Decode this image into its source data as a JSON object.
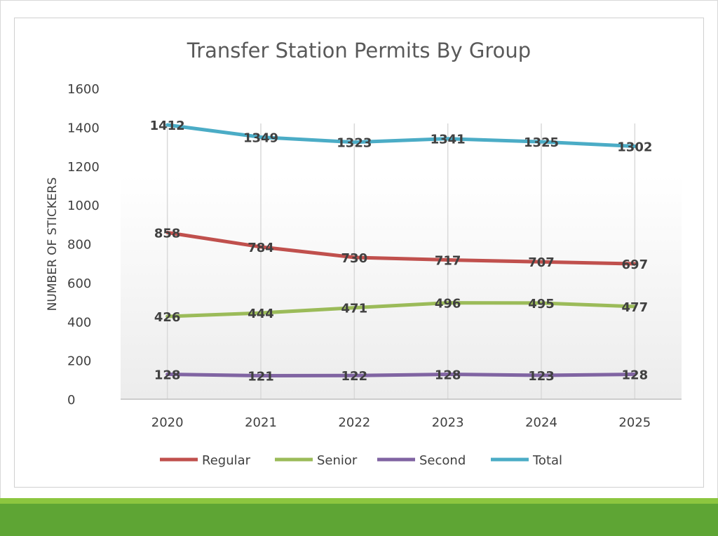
{
  "chart_data": {
    "type": "line",
    "title": "Transfer Station Permits By Group",
    "xlabel": "",
    "ylabel": "NUMBER OF STICKERS",
    "categories": [
      "2020",
      "2021",
      "2022",
      "2023",
      "2024",
      "2025"
    ],
    "ylim": [
      0,
      1600
    ],
    "yticks": [
      0,
      200,
      400,
      600,
      800,
      1000,
      1200,
      1400,
      1600
    ],
    "grid": "vertical",
    "legend": "bottom",
    "series": [
      {
        "name": "Regular",
        "color": "#c0504d",
        "values": [
          858,
          784,
          730,
          717,
          707,
          697
        ]
      },
      {
        "name": "Senior",
        "color": "#9bbb59",
        "values": [
          426,
          444,
          471,
          496,
          495,
          477
        ]
      },
      {
        "name": "Second",
        "color": "#8064a2",
        "values": [
          128,
          121,
          122,
          128,
          123,
          128
        ]
      },
      {
        "name": "Total",
        "color": "#4bacc6",
        "values": [
          1412,
          1349,
          1323,
          1341,
          1325,
          1302
        ]
      }
    ]
  },
  "colors": {
    "band_light": "#8cc63f",
    "band_dark": "#5ea534"
  }
}
